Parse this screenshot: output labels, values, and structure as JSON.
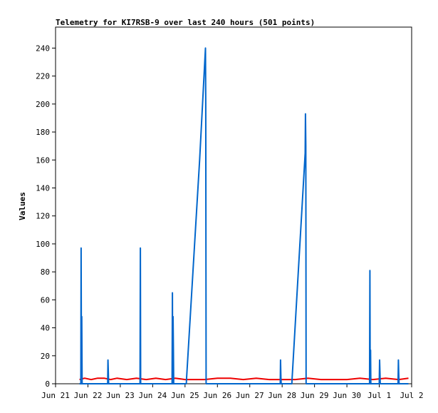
{
  "chart_data": {
    "type": "line",
    "title": "Telemetry for KI7RSB-9 over last 240 hours (501 points)",
    "ylabel": "Values",
    "xlabel": "",
    "ylim": [
      0,
      255
    ],
    "xlim": [
      "Jun 21",
      "Jul 2"
    ],
    "y_ticks": [
      "0",
      "20",
      "40",
      "60",
      "80",
      "100",
      "120",
      "140",
      "160",
      "180",
      "200",
      "220",
      "240"
    ],
    "x_ticks": [
      "Jun 21",
      "Jun 22",
      "Jun 23",
      "Jun 24",
      "Jun 25",
      "Jun 26",
      "Jun 27",
      "Jun 28",
      "Jun 29",
      "Jun 30",
      "Jul 1",
      "Jul 2"
    ],
    "grid": false,
    "series": [
      {
        "color": "#ee0000",
        "x": [
          0.74,
          0.9,
          1.1,
          1.3,
          1.5,
          1.7,
          1.9,
          2.2,
          2.5,
          2.8,
          3.1,
          3.4,
          3.7,
          4.0,
          4.3,
          4.6,
          5.0,
          5.4,
          5.8,
          6.2,
          6.6,
          7.0,
          7.4,
          7.8,
          8.2,
          8.6,
          9.0,
          9.4,
          9.8,
          10.2,
          10.6,
          10.9
        ],
        "y": [
          3,
          4,
          3,
          4,
          4,
          3,
          4,
          3,
          4,
          3,
          4,
          3,
          4,
          3,
          3,
          3,
          4,
          4,
          3,
          4,
          3,
          3,
          3,
          4,
          3,
          3,
          3,
          4,
          3,
          4,
          3,
          4
        ]
      },
      {
        "color": "#0066cc",
        "x": [
          0.74,
          0.78,
          0.79,
          0.8,
          0.81,
          0.82,
          0.84,
          1.61,
          1.62,
          1.63,
          1.64,
          1.65,
          2.61,
          2.62,
          2.63,
          2.64,
          3.6,
          3.61,
          3.62,
          3.63,
          3.64,
          3.65,
          4.04,
          4.05,
          4.45,
          4.63,
          4.64,
          4.65,
          6.94,
          6.95,
          6.96,
          6.97,
          7.3,
          7.31,
          7.71,
          7.72,
          7.73,
          7.74,
          9.7,
          9.71,
          9.72,
          9.73,
          9.74,
          10.0,
          10.01,
          10.02,
          10.03,
          10.58,
          10.59,
          10.6,
          10.61,
          10.62,
          10.9
        ],
        "y": [
          0,
          0,
          97,
          0,
          48,
          0,
          0,
          0,
          17,
          8,
          0,
          0,
          0,
          97,
          0,
          0,
          0,
          65,
          0,
          48,
          24,
          0,
          0,
          5,
          160,
          240,
          200,
          0,
          0,
          17,
          5,
          0,
          0,
          5,
          165,
          193,
          170,
          0,
          0,
          81,
          0,
          24,
          0,
          0,
          17,
          8,
          0,
          0,
          17,
          8,
          0,
          0,
          0
        ]
      }
    ]
  }
}
